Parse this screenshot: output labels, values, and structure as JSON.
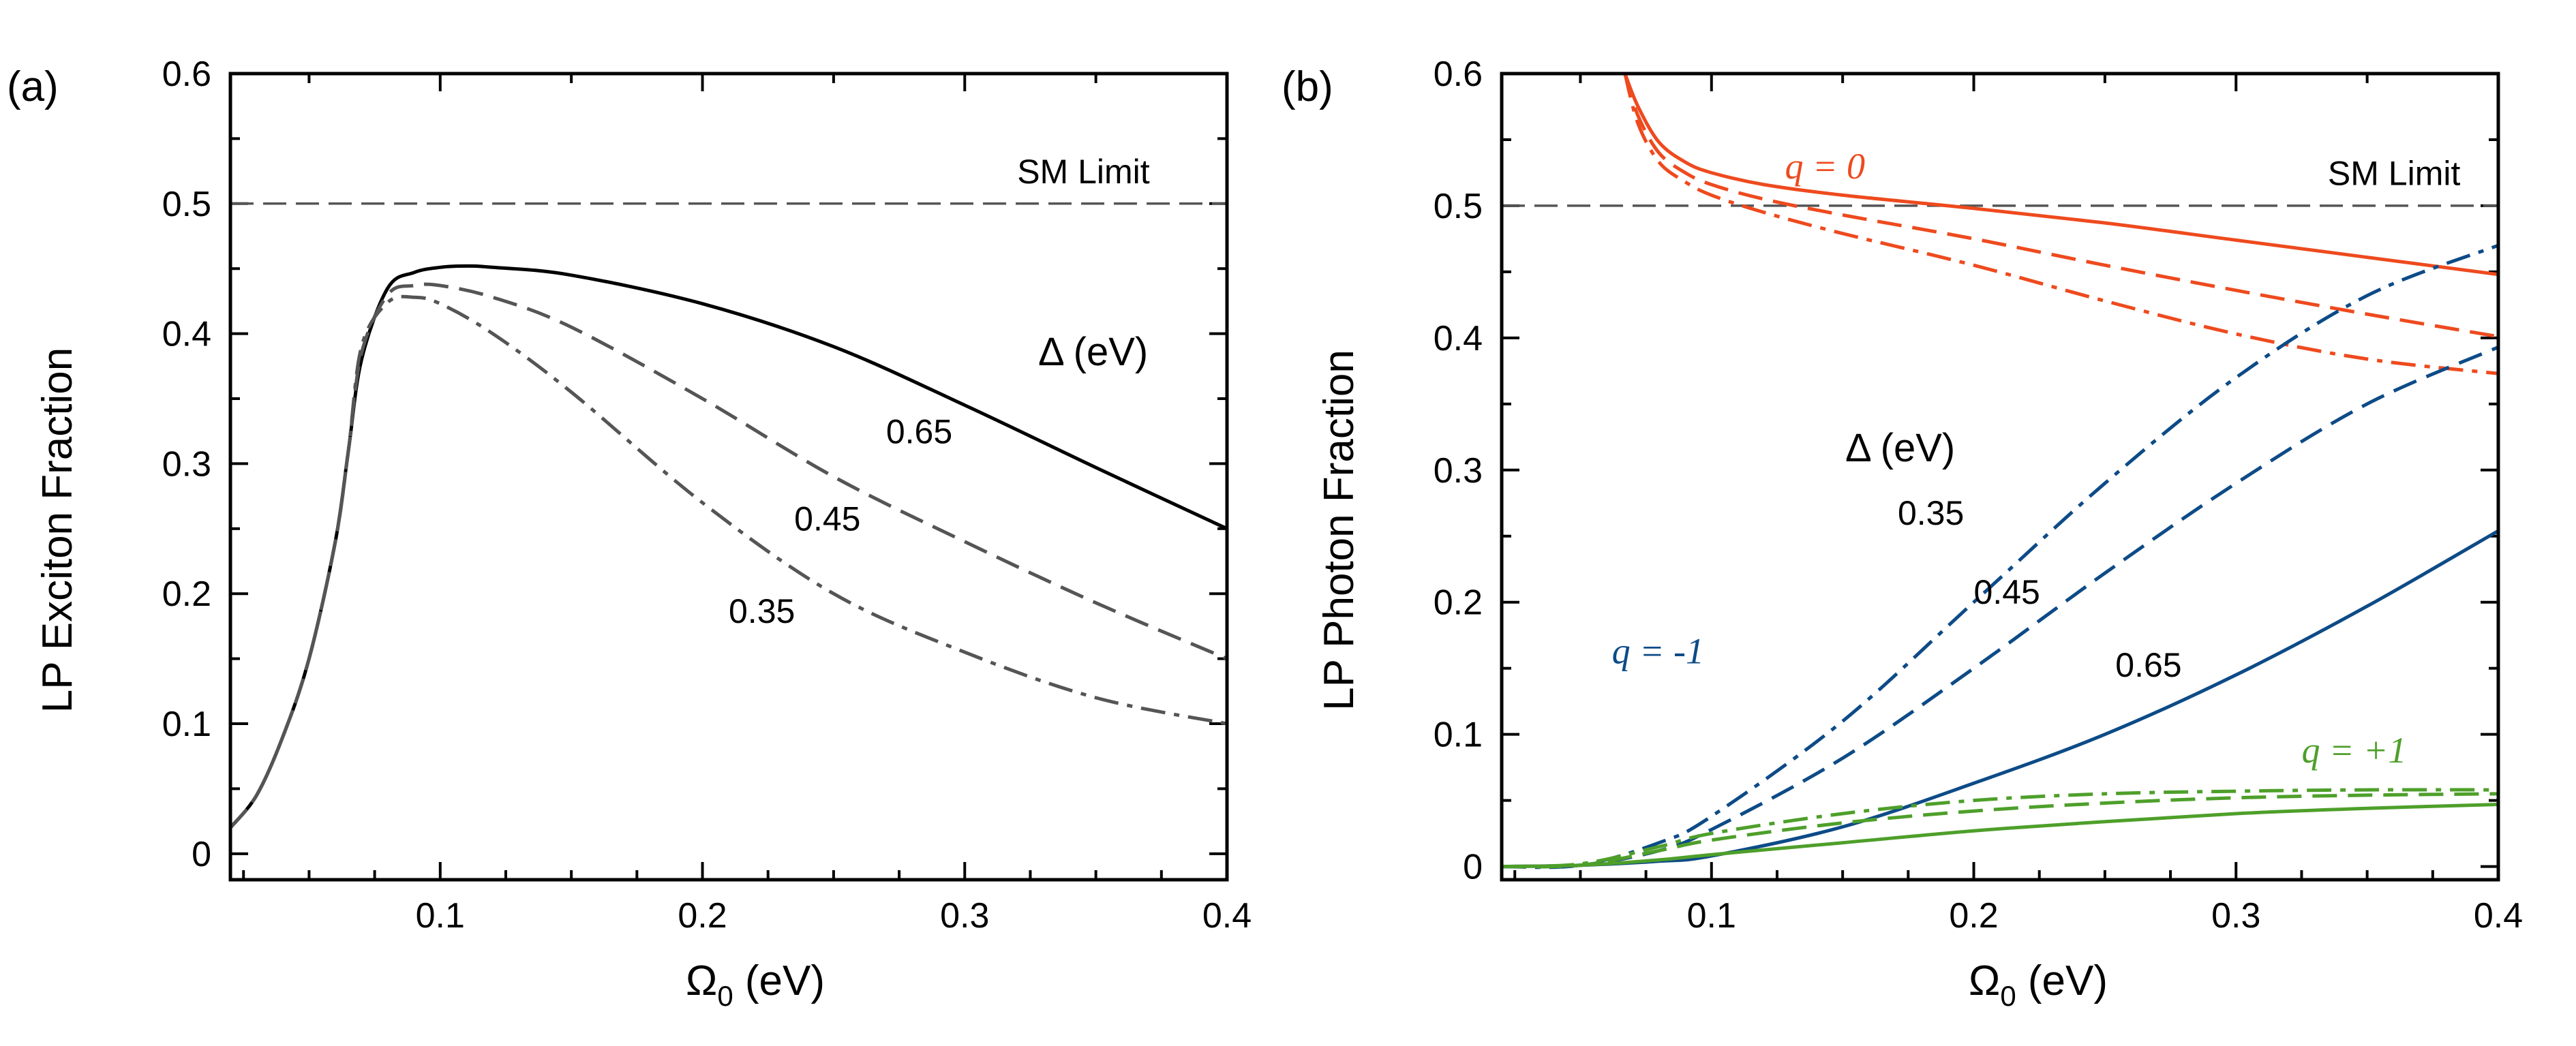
{
  "chart_data": [
    {
      "type": "line",
      "panel_label": "(a)",
      "xlabel": "Ω",
      "xlabel_sub": "0",
      "xlabel_unit": " (eV)",
      "ylabel": "LP Exciton Fraction",
      "xlim": [
        0.02,
        0.4
      ],
      "ylim": [
        -0.02,
        0.6
      ],
      "xticks": [
        0.1,
        0.2,
        0.3,
        0.4
      ],
      "xtick_labels": [
        "0.1",
        "0.2",
        "0.3",
        "0.4"
      ],
      "yticks": [
        0,
        0.1,
        0.2,
        0.3,
        0.4,
        0.5,
        0.6
      ],
      "ytick_labels": [
        "0",
        "0.1",
        "0.2",
        "0.3",
        "0.4",
        "0.5",
        "0.6"
      ],
      "reference_line": {
        "y": 0.5,
        "label": "SM Limit",
        "label_x": 0.32,
        "label_y": 0.525
      },
      "annotations": [
        {
          "text": "Δ (eV)",
          "x": 0.328,
          "y": 0.385,
          "big": true
        },
        {
          "text": "0.65",
          "x": 0.27,
          "y": 0.325
        },
        {
          "text": "0.45",
          "x": 0.235,
          "y": 0.258
        },
        {
          "text": "0.35",
          "x": 0.21,
          "y": 0.187
        }
      ],
      "series": [
        {
          "name": "0.65",
          "style": "solid",
          "color": "#000000",
          "x": [
            0.02,
            0.03,
            0.04,
            0.05,
            0.06,
            0.065,
            0.07,
            0.08,
            0.09,
            0.1,
            0.11,
            0.12,
            0.15,
            0.2,
            0.25,
            0.3,
            0.35,
            0.4
          ],
          "y": [
            0.02,
            0.045,
            0.09,
            0.15,
            0.24,
            0.31,
            0.38,
            0.435,
            0.447,
            0.451,
            0.452,
            0.451,
            0.445,
            0.423,
            0.39,
            0.345,
            0.297,
            0.25
          ]
        },
        {
          "name": "0.45",
          "style": "dashed",
          "color": "#555555",
          "x": [
            0.02,
            0.03,
            0.04,
            0.05,
            0.06,
            0.065,
            0.07,
            0.08,
            0.09,
            0.1,
            0.12,
            0.15,
            0.2,
            0.25,
            0.3,
            0.35,
            0.4
          ],
          "y": [
            0.02,
            0.045,
            0.09,
            0.15,
            0.24,
            0.31,
            0.385,
            0.43,
            0.437,
            0.437,
            0.428,
            0.405,
            0.35,
            0.29,
            0.24,
            0.193,
            0.15
          ]
        },
        {
          "name": "0.35",
          "style": "dashdot",
          "color": "#555555",
          "x": [
            0.02,
            0.03,
            0.04,
            0.05,
            0.06,
            0.065,
            0.07,
            0.08,
            0.09,
            0.1,
            0.12,
            0.15,
            0.2,
            0.25,
            0.3,
            0.35,
            0.4
          ],
          "y": [
            0.02,
            0.045,
            0.09,
            0.15,
            0.24,
            0.31,
            0.39,
            0.424,
            0.428,
            0.423,
            0.4,
            0.355,
            0.27,
            0.2,
            0.155,
            0.12,
            0.1
          ]
        }
      ]
    },
    {
      "type": "line",
      "panel_label": "(b)",
      "xlabel": "Ω",
      "xlabel_sub": "0",
      "xlabel_unit": " (eV)",
      "ylabel": "LP Photon Fraction",
      "xlim": [
        0.02,
        0.4
      ],
      "ylim": [
        -0.01,
        0.6
      ],
      "xticks": [
        0.1,
        0.2,
        0.3,
        0.4
      ],
      "xtick_labels": [
        "0.1",
        "0.2",
        "0.3",
        "0.4"
      ],
      "yticks": [
        0,
        0.1,
        0.2,
        0.3,
        0.4,
        0.5,
        0.6
      ],
      "ytick_labels": [
        "0",
        "0.1",
        "0.2",
        "0.3",
        "0.4",
        "0.5",
        "0.6"
      ],
      "reference_line": {
        "y": 0.5,
        "label": "SM Limit",
        "label_x": 0.335,
        "label_y": 0.525
      },
      "annotations": [
        {
          "text": "Δ (eV)",
          "x": 0.151,
          "y": 0.316,
          "big": true
        },
        {
          "text": "0.35",
          "x": 0.171,
          "y": 0.268
        },
        {
          "text": "0.45",
          "x": 0.2,
          "y": 0.208
        },
        {
          "text": "0.65",
          "x": 0.254,
          "y": 0.153
        }
      ],
      "group_labels": [
        {
          "text": "q = 0",
          "x": 0.128,
          "y": 0.53,
          "color": "#ee4a1e"
        },
        {
          "text": "q = -1",
          "x": 0.062,
          "y": 0.163,
          "color": "#0d4b87"
        },
        {
          "text": "q = +1",
          "x": 0.325,
          "y": 0.088,
          "color": "#4e9f2a"
        }
      ],
      "series": [
        {
          "name": "q=0, 0.65",
          "group": "q = 0",
          "style": "solid",
          "color": "#ee4a1e",
          "x": [
            0.067,
            0.072,
            0.08,
            0.09,
            0.1,
            0.12,
            0.15,
            0.2,
            0.25,
            0.3,
            0.35,
            0.4
          ],
          "y": [
            0.6,
            0.575,
            0.548,
            0.533,
            0.525,
            0.516,
            0.508,
            0.498,
            0.487,
            0.474,
            0.461,
            0.448
          ]
        },
        {
          "name": "q=0, 0.45",
          "group": "q = 0",
          "style": "dashed",
          "color": "#ee4a1e",
          "x": [
            0.067,
            0.072,
            0.08,
            0.09,
            0.1,
            0.12,
            0.15,
            0.2,
            0.25,
            0.3,
            0.35,
            0.4
          ],
          "y": [
            0.6,
            0.568,
            0.54,
            0.525,
            0.516,
            0.505,
            0.493,
            0.475,
            0.455,
            0.436,
            0.418,
            0.401
          ]
        },
        {
          "name": "q=0, 0.35",
          "group": "q = 0",
          "style": "dashdot",
          "color": "#ee4a1e",
          "x": [
            0.067,
            0.072,
            0.08,
            0.09,
            0.1,
            0.12,
            0.15,
            0.2,
            0.25,
            0.3,
            0.35,
            0.4
          ],
          "y": [
            0.6,
            0.562,
            0.533,
            0.518,
            0.508,
            0.495,
            0.479,
            0.455,
            0.428,
            0.403,
            0.384,
            0.373
          ]
        },
        {
          "name": "q=-1, 0.65",
          "group": "q = -1",
          "style": "solid",
          "color": "#0d4b87",
          "x": [
            0.02,
            0.05,
            0.08,
            0.1,
            0.15,
            0.2,
            0.25,
            0.3,
            0.35,
            0.4
          ],
          "y": [
            0,
            0.001,
            0.004,
            0.008,
            0.03,
            0.063,
            0.1,
            0.145,
            0.197,
            0.254
          ]
        },
        {
          "name": "q=-1, 0.45",
          "group": "q = -1",
          "style": "dashed",
          "color": "#0d4b87",
          "x": [
            0.02,
            0.05,
            0.08,
            0.1,
            0.15,
            0.2,
            0.25,
            0.3,
            0.35,
            0.4
          ],
          "y": [
            0,
            0.001,
            0.012,
            0.028,
            0.082,
            0.15,
            0.222,
            0.29,
            0.35,
            0.393
          ]
        },
        {
          "name": "q=-1, 0.35",
          "group": "q = -1",
          "style": "dashdot",
          "color": "#0d4b87",
          "x": [
            0.02,
            0.05,
            0.08,
            0.1,
            0.15,
            0.2,
            0.25,
            0.3,
            0.35,
            0.4
          ],
          "y": [
            0,
            0.001,
            0.018,
            0.038,
            0.11,
            0.2,
            0.29,
            0.37,
            0.432,
            0.47
          ]
        },
        {
          "name": "q=+1, 0.65",
          "group": "q = +1",
          "style": "solid",
          "color": "#4e9f2a",
          "x": [
            0.02,
            0.05,
            0.08,
            0.1,
            0.15,
            0.2,
            0.25,
            0.3,
            0.35,
            0.4
          ],
          "y": [
            0,
            0.001,
            0.005,
            0.009,
            0.018,
            0.027,
            0.034,
            0.04,
            0.044,
            0.047
          ]
        },
        {
          "name": "q=+1, 0.45",
          "group": "q = +1",
          "style": "dashed",
          "color": "#4e9f2a",
          "x": [
            0.02,
            0.05,
            0.08,
            0.1,
            0.15,
            0.2,
            0.25,
            0.3,
            0.35,
            0.4
          ],
          "y": [
            0,
            0.001,
            0.012,
            0.02,
            0.033,
            0.042,
            0.048,
            0.052,
            0.054,
            0.055
          ]
        },
        {
          "name": "q=+1, 0.35",
          "group": "q = +1",
          "style": "dashdot",
          "color": "#4e9f2a",
          "x": [
            0.02,
            0.05,
            0.08,
            0.1,
            0.15,
            0.2,
            0.25,
            0.3,
            0.35,
            0.4
          ],
          "y": [
            0,
            0.002,
            0.015,
            0.025,
            0.04,
            0.05,
            0.055,
            0.057,
            0.058,
            0.058
          ]
        }
      ]
    }
  ]
}
